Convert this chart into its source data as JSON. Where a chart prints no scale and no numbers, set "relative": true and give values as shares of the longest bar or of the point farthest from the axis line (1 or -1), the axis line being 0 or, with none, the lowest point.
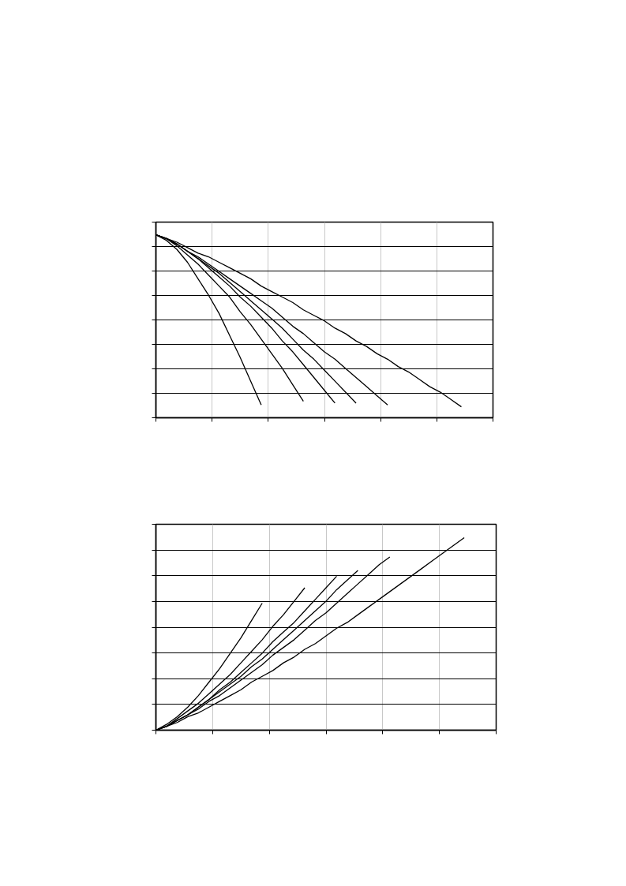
{
  "chart_data": [
    {
      "type": "line",
      "relative": true,
      "grid": true,
      "tick_labels": false,
      "line_style": "solid",
      "marker": "none",
      "categories": [
        null,
        null,
        null,
        null,
        null,
        null,
        null,
        null,
        null,
        null,
        null,
        null,
        null,
        null,
        null,
        null,
        null,
        null,
        null,
        null,
        null,
        null,
        null,
        null,
        null,
        null,
        null,
        null,
        null,
        null,
        null,
        null,
        null
      ],
      "series": [
        {
          "color": "#000000",
          "values": [
            1,
            0.97,
            0.92,
            0.85,
            0.76,
            0.67,
            0.57,
            0.45,
            0.33,
            0.2,
            0.07,
            null,
            null,
            null,
            null,
            null,
            null,
            null,
            null,
            null,
            null,
            null,
            null,
            null,
            null,
            null,
            null,
            null,
            null,
            null,
            null,
            null,
            null
          ]
        },
        {
          "color": "#000000",
          "values": [
            1,
            0.98,
            0.94,
            0.89,
            0.84,
            0.78,
            0.72,
            0.66,
            0.58,
            0.51,
            0.43,
            0.35,
            0.27,
            0.18,
            0.09,
            null,
            null,
            null,
            null,
            null,
            null,
            null,
            null,
            null,
            null,
            null,
            null,
            null,
            null,
            null,
            null,
            null,
            null
          ]
        },
        {
          "color": "#000000",
          "values": [
            1,
            0.98,
            0.95,
            0.91,
            0.87,
            0.82,
            0.77,
            0.72,
            0.66,
            0.61,
            0.55,
            0.49,
            0.42,
            0.36,
            0.29,
            0.22,
            0.15,
            0.08,
            null,
            null,
            null,
            null,
            null,
            null,
            null,
            null,
            null,
            null,
            null,
            null,
            null,
            null,
            null
          ]
        },
        {
          "color": "#000000",
          "values": [
            1,
            0.98,
            0.95,
            0.91,
            0.87,
            0.83,
            0.79,
            0.74,
            0.69,
            0.64,
            0.59,
            0.54,
            0.49,
            0.43,
            0.37,
            0.32,
            0.26,
            0.2,
            0.14,
            0.08,
            null,
            null,
            null,
            null,
            null,
            null,
            null,
            null,
            null,
            null,
            null,
            null,
            null
          ]
        },
        {
          "color": "#000000",
          "values": [
            1,
            0.98,
            0.95,
            0.91,
            0.88,
            0.84,
            0.8,
            0.76,
            0.72,
            0.68,
            0.64,
            0.6,
            0.55,
            0.5,
            0.46,
            0.41,
            0.36,
            0.32,
            0.27,
            0.22,
            0.17,
            0.12,
            0.07,
            null,
            null,
            null,
            null,
            null,
            null,
            null,
            null,
            null,
            null
          ]
        },
        {
          "color": "#000000",
          "values": [
            1,
            0.98,
            0.96,
            0.93,
            0.9,
            0.88,
            0.85,
            0.82,
            0.79,
            0.76,
            0.72,
            0.69,
            0.66,
            0.63,
            0.59,
            0.56,
            0.53,
            0.49,
            0.46,
            0.42,
            0.39,
            0.35,
            0.32,
            0.28,
            0.25,
            0.21,
            0.17,
            0.14,
            0.1,
            0.06,
            null,
            null,
            null
          ]
        }
      ]
    },
    {
      "type": "line",
      "relative": true,
      "grid": true,
      "tick_labels": false,
      "line_style": "solid",
      "marker": "none",
      "categories": [
        null,
        null,
        null,
        null,
        null,
        null,
        null,
        null,
        null,
        null,
        null,
        null,
        null,
        null,
        null,
        null,
        null,
        null,
        null,
        null,
        null,
        null,
        null,
        null,
        null,
        null,
        null,
        null,
        null,
        null,
        null,
        null,
        null
      ],
      "series": [
        {
          "color": "#000000",
          "values": [
            0,
            0.03,
            0.07,
            0.12,
            0.18,
            0.25,
            0.32,
            0.4,
            0.48,
            0.57,
            0.66,
            null,
            null,
            null,
            null,
            null,
            null,
            null,
            null,
            null,
            null,
            null,
            null,
            null,
            null,
            null,
            null,
            null,
            null,
            null,
            null,
            null,
            null
          ]
        },
        {
          "color": "#000000",
          "values": [
            0,
            0.02,
            0.06,
            0.1,
            0.14,
            0.19,
            0.24,
            0.29,
            0.35,
            0.41,
            0.47,
            0.54,
            0.6,
            0.67,
            0.74,
            null,
            null,
            null,
            null,
            null,
            null,
            null,
            null,
            null,
            null,
            null,
            null,
            null,
            null,
            null,
            null,
            null,
            null
          ]
        },
        {
          "color": "#000000",
          "values": [
            0,
            0.02,
            0.05,
            0.08,
            0.12,
            0.16,
            0.21,
            0.25,
            0.3,
            0.35,
            0.4,
            0.46,
            0.51,
            0.56,
            0.62,
            0.68,
            0.74,
            0.8,
            null,
            null,
            null,
            null,
            null,
            null,
            null,
            null,
            null,
            null,
            null,
            null,
            null,
            null,
            null
          ]
        },
        {
          "color": "#000000",
          "values": [
            0,
            0.02,
            0.05,
            0.08,
            0.12,
            0.16,
            0.2,
            0.24,
            0.28,
            0.33,
            0.37,
            0.42,
            0.47,
            0.52,
            0.57,
            0.62,
            0.67,
            0.73,
            0.78,
            0.83,
            null,
            null,
            null,
            null,
            null,
            null,
            null,
            null,
            null,
            null,
            null,
            null,
            null
          ]
        },
        {
          "color": "#000000",
          "values": [
            0,
            0.02,
            0.05,
            0.08,
            0.11,
            0.15,
            0.18,
            0.22,
            0.26,
            0.3,
            0.34,
            0.39,
            0.43,
            0.47,
            0.52,
            0.57,
            0.61,
            0.66,
            0.71,
            0.76,
            0.81,
            0.86,
            0.9,
            null,
            null,
            null,
            null,
            null,
            null,
            null,
            null,
            null,
            null
          ]
        },
        {
          "color": "#000000",
          "values": [
            0,
            0.02,
            0.04,
            0.07,
            0.09,
            0.12,
            0.15,
            0.18,
            0.21,
            0.25,
            0.28,
            0.31,
            0.35,
            0.38,
            0.42,
            0.45,
            0.49,
            0.53,
            0.56,
            0.6,
            0.64,
            0.68,
            0.72,
            0.76,
            0.8,
            0.84,
            0.88,
            0.92,
            0.96,
            1,
            null,
            null,
            null
          ]
        }
      ]
    }
  ]
}
